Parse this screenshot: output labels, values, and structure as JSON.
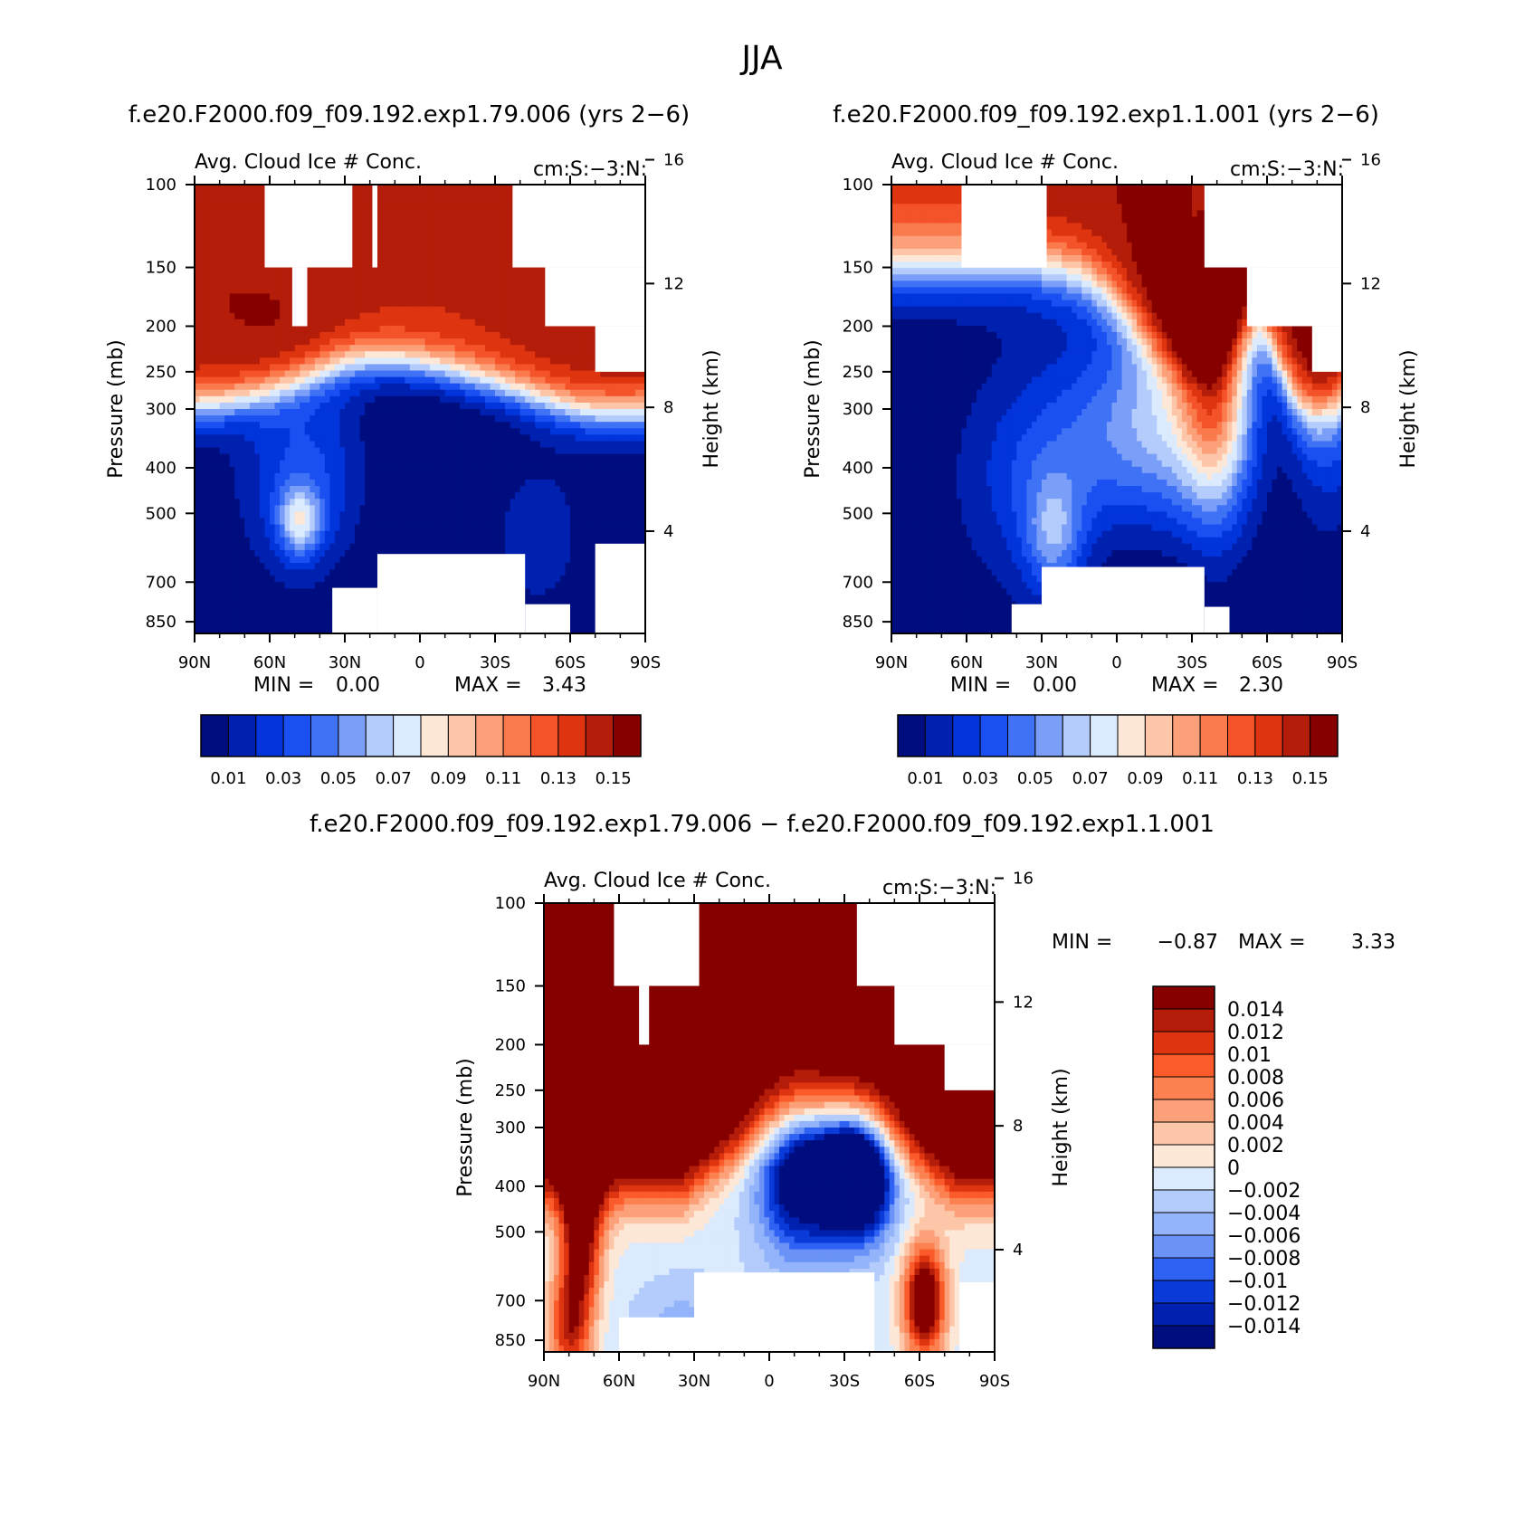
{
  "figure": {
    "title": "JJA",
    "diff_title": "f.e20.F2000.f09_f09.192.exp1.79.006 − f.e20.F2000.f09_f09.192.exp1.1.001"
  },
  "chart_data": [
    {
      "type": "heatmap",
      "case_title": "f.e20.F2000.f09_f09.192.exp1.79.006 (yrs 2−6)",
      "title": "Avg. Cloud Ice # Conc.",
      "units": "cm:S:−3:N:",
      "xlabel": "",
      "ylabel": "Pressure (mb)",
      "ylabel_right": "Height (km)",
      "x_ticks": [
        "90N",
        "60N",
        "30N",
        "0",
        "30S",
        "60S",
        "90S"
      ],
      "y_ticks": [
        100,
        150,
        200,
        250,
        300,
        400,
        500,
        700,
        850
      ],
      "height_ticks": [
        16,
        12,
        8,
        4
      ],
      "ylim": [
        900,
        100
      ],
      "xlim": [
        -90,
        90
      ],
      "min_label": "MIN =",
      "min_value": "0.00",
      "max_label": "MAX =",
      "max_value": "3.43",
      "colorbar_labels": [
        "0.01",
        "0.03",
        "0.05",
        "0.07",
        "0.09",
        "0.11",
        "0.13",
        "0.15"
      ],
      "colors": [
        "#000d7e",
        "#0020b0",
        "#0135db",
        "#1a50f2",
        "#3f72f5",
        "#7b9ff8",
        "#b4ccfb",
        "#dbeafd",
        "#fde7d6",
        "#fdc6a8",
        "#fca07a",
        "#fb7a4d",
        "#f45228",
        "#df3410",
        "#b31d09",
        "#860000"
      ]
    },
    {
      "type": "heatmap",
      "case_title": "f.e20.F2000.f09_f09.192.exp1.1.001 (yrs 2−6)",
      "title": "Avg. Cloud Ice # Conc.",
      "units": "cm:S:−3:N:",
      "xlabel": "",
      "ylabel": "Pressure (mb)",
      "ylabel_right": "Height (km)",
      "x_ticks": [
        "90N",
        "60N",
        "30N",
        "0",
        "30S",
        "60S",
        "90S"
      ],
      "y_ticks": [
        100,
        150,
        200,
        250,
        300,
        400,
        500,
        700,
        850
      ],
      "height_ticks": [
        16,
        12,
        8,
        4
      ],
      "ylim": [
        900,
        100
      ],
      "xlim": [
        -90,
        90
      ],
      "min_label": "MIN =",
      "min_value": "0.00",
      "max_label": "MAX =",
      "max_value": "2.30",
      "colorbar_labels": [
        "0.01",
        "0.03",
        "0.05",
        "0.07",
        "0.09",
        "0.11",
        "0.13",
        "0.15"
      ],
      "colors": [
        "#000d7e",
        "#0020b0",
        "#0135db",
        "#1a50f2",
        "#3f72f5",
        "#7b9ff8",
        "#b4ccfb",
        "#dbeafd",
        "#fde7d6",
        "#fdc6a8",
        "#fca07a",
        "#fb7a4d",
        "#f45228",
        "#df3410",
        "#b31d09",
        "#860000"
      ]
    },
    {
      "type": "heatmap",
      "title": "Avg. Cloud Ice # Conc.",
      "units": "cm:S:−3:N:",
      "xlabel": "",
      "ylabel": "Pressure (mb)",
      "ylabel_right": "Height (km)",
      "x_ticks": [
        "90N",
        "60N",
        "30N",
        "0",
        "30S",
        "60S",
        "90S"
      ],
      "y_ticks": [
        100,
        150,
        200,
        250,
        300,
        400,
        500,
        700,
        850
      ],
      "height_ticks": [
        16,
        12,
        8,
        4
      ],
      "ylim": [
        900,
        100
      ],
      "xlim": [
        -90,
        90
      ],
      "min_label": "MIN =",
      "min_value": "−0.87",
      "max_label": "MAX =",
      "max_value": "3.33",
      "colorbar_labels": [
        "0.014",
        "0.012",
        "0.01",
        "0.008",
        "0.006",
        "0.004",
        "0.002",
        "0",
        "−0.002",
        "−0.004",
        "−0.006",
        "−0.008",
        "−0.01",
        "−0.012",
        "−0.014"
      ],
      "colors": [
        "#860000",
        "#b31d09",
        "#df3410",
        "#fb5a2a",
        "#fc8150",
        "#fca07a",
        "#fdc6a8",
        "#fde7d6",
        "#dbeafd",
        "#b4ccfb",
        "#93b4fa",
        "#6b93f7",
        "#2f62f3",
        "#0a3bd9",
        "#0020b0",
        "#000d7e"
      ]
    }
  ]
}
